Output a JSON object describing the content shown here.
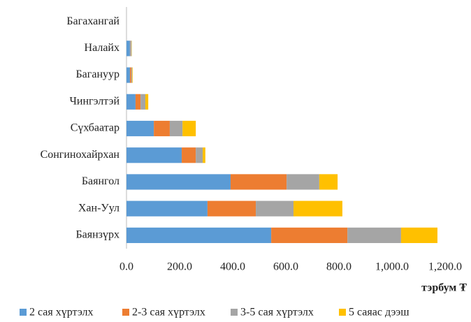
{
  "chart_data": {
    "type": "hbar_stacked",
    "categories": [
      "Багахангай",
      "Налайх",
      "Багануур",
      "Чингэлтэй",
      "Сүхбаатар",
      "Сонгинохайрхан",
      "Баянгол",
      "Хан-Уул",
      "Баянзүрх"
    ],
    "series": [
      {
        "name": "2 сая хүртэлх",
        "color": "#5b9bd5",
        "values": [
          0,
          13,
          13,
          34,
          103,
          208,
          392,
          305,
          545
        ]
      },
      {
        "name": "2-3 сая хүртэлх",
        "color": "#ed7d31",
        "values": [
          0,
          1,
          5,
          19,
          60,
          53,
          211,
          182,
          287
        ]
      },
      {
        "name": "3-5 сая хүртэлх",
        "color": "#a5a5a5",
        "values": [
          0,
          5,
          3,
          18,
          48,
          26,
          123,
          142,
          202
        ]
      },
      {
        "name": "5 саяас дээш",
        "color": "#ffc000",
        "values": [
          0,
          1,
          2,
          11,
          50,
          10,
          69,
          184,
          137
        ]
      }
    ],
    "xlim": [
      0,
      1200
    ],
    "xticks": [
      {
        "value": 0,
        "label": "0.0"
      },
      {
        "value": 200,
        "label": "200.0"
      },
      {
        "value": 400,
        "label": "400.0"
      },
      {
        "value": 600,
        "label": "600.0"
      },
      {
        "value": 800,
        "label": "800.0"
      },
      {
        "value": 1000,
        "label": "1,000.0"
      },
      {
        "value": 1200,
        "label": "1,200.0"
      }
    ],
    "xlabel": "тэрбум ₮",
    "legend": "bottom"
  }
}
